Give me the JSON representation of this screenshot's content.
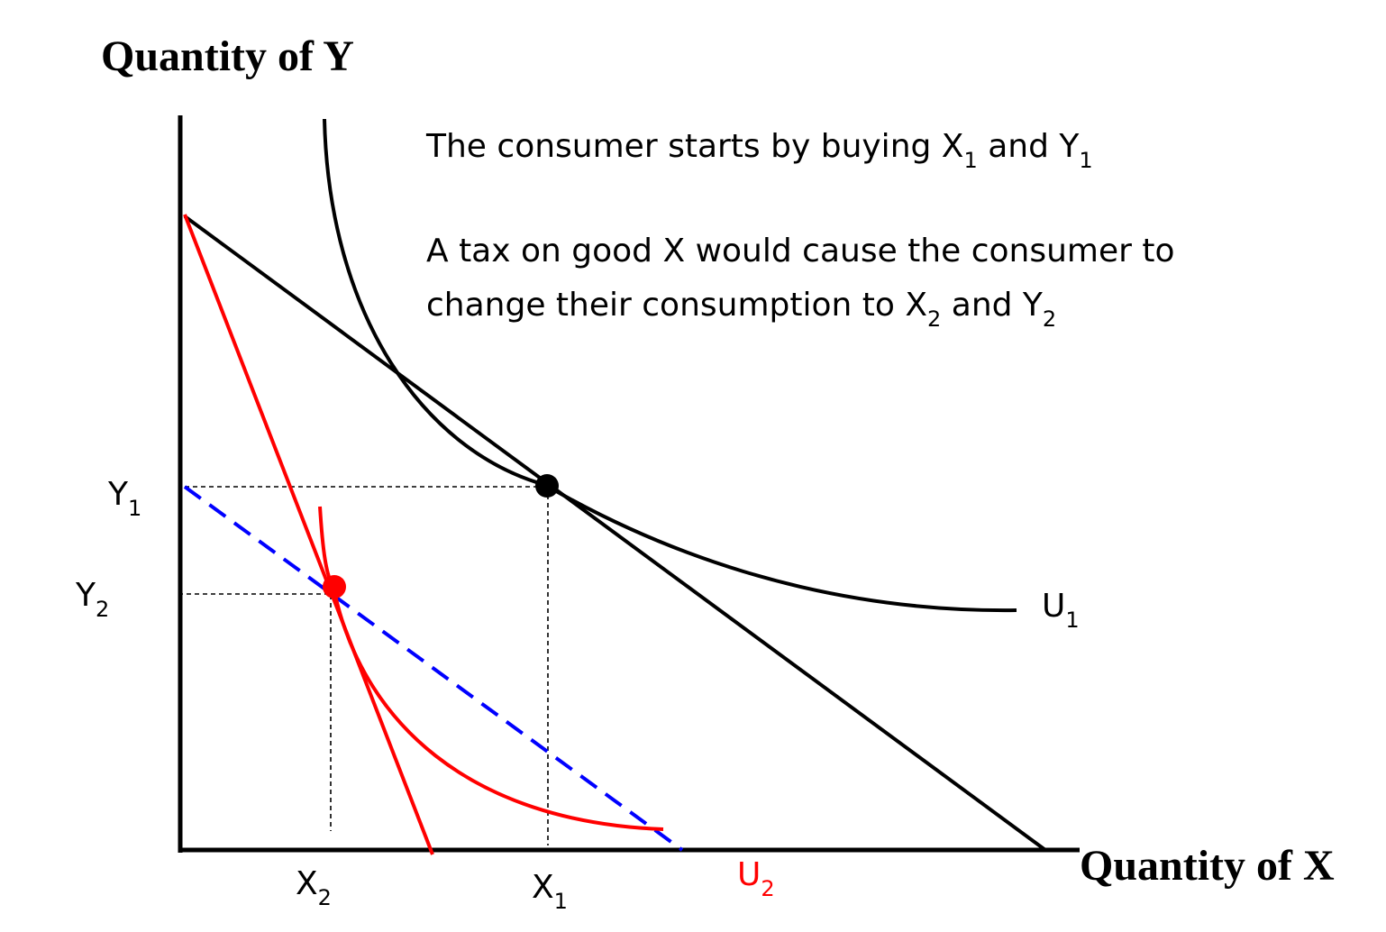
{
  "axes": {
    "y_label": "Quantity of Y",
    "x_label": "Quantity of X"
  },
  "notes": {
    "line1_text": "The consumer starts by buying X",
    "line1_sub1": "1",
    "line1_and": " and Y",
    "line1_sub2": "1",
    "line2_text": "A tax on good X  would cause the consumer to",
    "line3_text": "change their consumption to X",
    "line3_sub1": "2",
    "line3_and": " and Y",
    "line3_sub2": "2"
  },
  "labels": {
    "y1_base": "Y",
    "y1_sub": "1",
    "y2_base": "Y",
    "y2_sub": "2",
    "x1_base": "X",
    "x1_sub": "1",
    "x2_base": "X",
    "x2_sub": "2",
    "u1_base": "U",
    "u1_sub": "1",
    "u2_base": "U",
    "u2_sub": "2"
  },
  "colors": {
    "original_budget": "#000000",
    "new_budget": "#ff0000",
    "compensated_budget": "#0000ff",
    "u1_curve": "#000000",
    "u2_curve": "#ff0000",
    "equilibrium_1": "#000000",
    "equilibrium_2": "#ff0000"
  }
}
